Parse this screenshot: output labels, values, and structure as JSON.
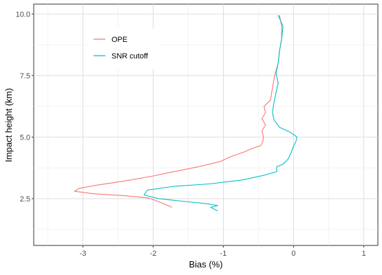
{
  "chart_data": {
    "type": "line",
    "title": "",
    "xlabel": "Bias (%)",
    "ylabel": "Impact height (km)",
    "xlim": [
      -3.7,
      1.2
    ],
    "ylim": [
      0.6,
      10.4
    ],
    "x_ticks": [
      -3,
      -2,
      -1,
      0,
      1
    ],
    "x_tick_labels": [
      "-3",
      "-2",
      "-1",
      "0",
      "1"
    ],
    "y_ticks": [
      2.5,
      5.0,
      7.5,
      10.0
    ],
    "y_tick_labels": [
      "2.5",
      "5.0",
      "7.5",
      "10.0"
    ],
    "grid": true,
    "legend_position": "top-left inside",
    "series": [
      {
        "name": "OPE",
        "color": "#F8766D",
        "points": [
          [
            -1.73,
            2.15
          ],
          [
            -1.9,
            2.35
          ],
          [
            -2.05,
            2.52
          ],
          [
            -2.4,
            2.62
          ],
          [
            -2.85,
            2.7
          ],
          [
            -3.12,
            2.8
          ],
          [
            -3.05,
            2.92
          ],
          [
            -2.8,
            3.05
          ],
          [
            -2.4,
            3.22
          ],
          [
            -2.0,
            3.42
          ],
          [
            -1.7,
            3.6
          ],
          [
            -1.35,
            3.8
          ],
          [
            -1.05,
            4.0
          ],
          [
            -0.9,
            4.2
          ],
          [
            -0.7,
            4.4
          ],
          [
            -0.58,
            4.55
          ],
          [
            -0.47,
            4.65
          ],
          [
            -0.44,
            4.8
          ],
          [
            -0.43,
            5.0
          ],
          [
            -0.45,
            5.25
          ],
          [
            -0.4,
            5.5
          ],
          [
            -0.45,
            5.75
          ],
          [
            -0.4,
            6.0
          ],
          [
            -0.42,
            6.25
          ],
          [
            -0.33,
            6.5
          ],
          [
            -0.3,
            7.0
          ],
          [
            -0.27,
            7.5
          ],
          [
            -0.22,
            8.0
          ],
          [
            -0.2,
            8.5
          ],
          [
            -0.17,
            9.0
          ],
          [
            -0.17,
            9.5
          ],
          [
            -0.2,
            9.95
          ]
        ]
      },
      {
        "name": "SNR cutoff",
        "color": "#00BFC4",
        "points": [
          [
            -1.08,
            2.0
          ],
          [
            -1.18,
            2.15
          ],
          [
            -1.08,
            2.22
          ],
          [
            -1.25,
            2.3
          ],
          [
            -1.6,
            2.4
          ],
          [
            -1.92,
            2.5
          ],
          [
            -2.13,
            2.65
          ],
          [
            -2.08,
            2.85
          ],
          [
            -1.7,
            3.0
          ],
          [
            -1.2,
            3.1
          ],
          [
            -0.75,
            3.25
          ],
          [
            -0.42,
            3.45
          ],
          [
            -0.24,
            3.6
          ],
          [
            -0.24,
            3.8
          ],
          [
            -0.15,
            3.9
          ],
          [
            -0.08,
            4.1
          ],
          [
            -0.03,
            4.4
          ],
          [
            0.0,
            4.65
          ],
          [
            0.03,
            4.8
          ],
          [
            0.05,
            5.0
          ],
          [
            -0.05,
            5.2
          ],
          [
            -0.2,
            5.4
          ],
          [
            -0.28,
            5.7
          ],
          [
            -0.3,
            6.0
          ],
          [
            -0.28,
            6.4
          ],
          [
            -0.25,
            6.8
          ],
          [
            -0.22,
            7.2
          ],
          [
            -0.25,
            7.6
          ],
          [
            -0.22,
            8.0
          ],
          [
            -0.2,
            8.5
          ],
          [
            -0.17,
            9.0
          ],
          [
            -0.15,
            9.5
          ],
          [
            -0.22,
            9.95
          ]
        ]
      }
    ]
  }
}
